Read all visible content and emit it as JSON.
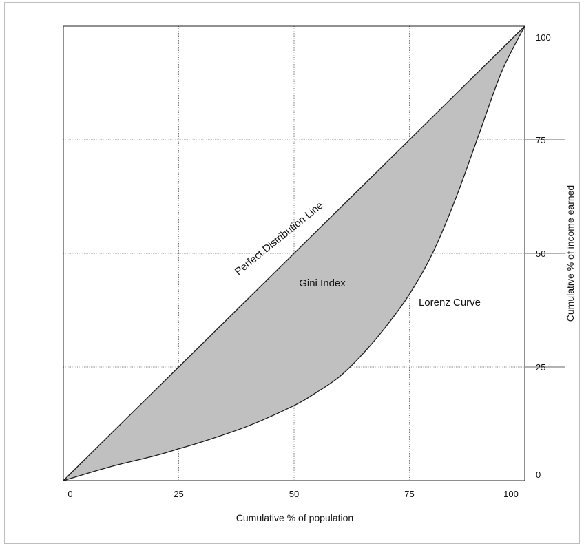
{
  "chart_data": {
    "type": "area",
    "title": "",
    "xlabel": "Cumulative % of population",
    "ylabel": "Cumulative % of income earned",
    "xlim": [
      0,
      100
    ],
    "ylim": [
      0,
      100
    ],
    "x_ticks": [
      "0",
      "25",
      "50",
      "75",
      "100"
    ],
    "y_ticks": [
      "0",
      "25",
      "50",
      "75",
      "100"
    ],
    "y_axis_side": "right",
    "grid": true,
    "series": [
      {
        "name": "Perfect Distribution Line",
        "x": [
          0,
          100
        ],
        "y": [
          0,
          100
        ]
      },
      {
        "name": "Lorenz Curve",
        "x": [
          0,
          10,
          20,
          25,
          30,
          40,
          50,
          55,
          60,
          65,
          70,
          75,
          80,
          85,
          90,
          95,
          100
        ],
        "y": [
          0,
          3,
          5.5,
          7,
          8.5,
          12,
          16.5,
          19.5,
          23,
          28,
          34,
          41,
          50,
          62,
          76,
          90,
          100
        ]
      }
    ],
    "annotations": [
      "Gini Index"
    ],
    "colors": {
      "shaded_area": "#c0c0c0",
      "lines": "#1a1a1a",
      "grid": "#555555"
    }
  }
}
